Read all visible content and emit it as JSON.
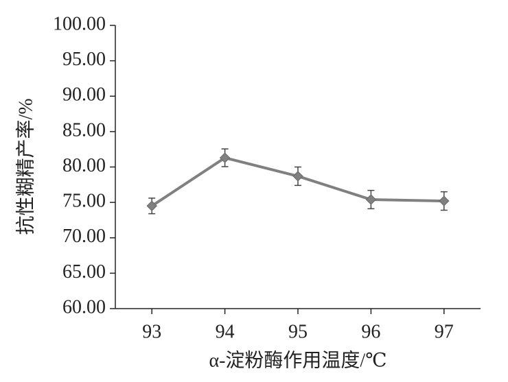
{
  "chart_data": {
    "type": "line",
    "x_label": "α-淀粉酶作用温度/℃",
    "y_label": "抗性糊精产率/%",
    "x": [
      93,
      94,
      95,
      96,
      97
    ],
    "series": [
      {
        "color": "#808080",
        "values": [
          74.5,
          81.3,
          78.7,
          75.4,
          75.2
        ],
        "errors": [
          1.1,
          1.25,
          1.3,
          1.3,
          1.3
        ]
      }
    ],
    "xlim": [
      92.5,
      97.5
    ],
    "xticks": [
      93,
      94,
      95,
      96,
      97
    ],
    "ylim": [
      60,
      100
    ],
    "yticks": [
      {
        "value": 60,
        "label": "60.00"
      },
      {
        "value": 65,
        "label": "65.00"
      },
      {
        "value": 70,
        "label": "70.00"
      },
      {
        "value": 75,
        "label": "75.00"
      },
      {
        "value": 80,
        "label": "80.00"
      },
      {
        "value": 85,
        "label": "85.00"
      },
      {
        "value": 90,
        "label": "90.00"
      },
      {
        "value": 95,
        "label": "95.00"
      },
      {
        "value": 100,
        "label": "100.00"
      }
    ]
  }
}
